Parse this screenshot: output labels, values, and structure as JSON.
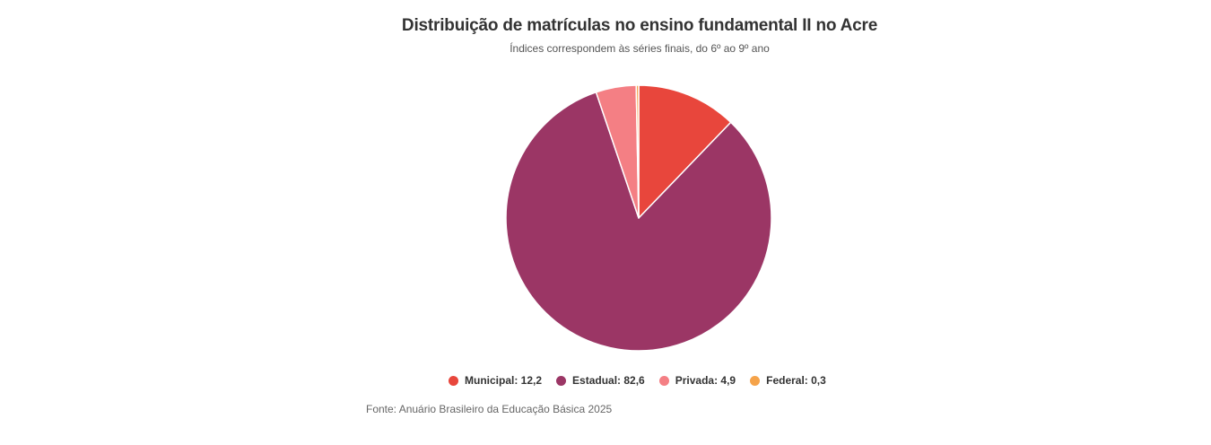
{
  "chart_data": {
    "type": "pie",
    "title": "Distribuição de matrículas no ensino fundamental II no Acre",
    "subtitle": "Índices correspondem às séries finais, do 6º ao 9º ano",
    "source": "Fonte: Anuário Brasileiro da Educação Básica 2025",
    "legend_position": "bottom",
    "slices": [
      {
        "label": "Municipal",
        "value": 12.2,
        "value_text": "12,2",
        "legend_text": "Municipal: 12,2",
        "color": "#e8463c"
      },
      {
        "label": "Estadual",
        "value": 82.6,
        "value_text": "82,6",
        "legend_text": "Estadual: 82,6",
        "color": "#9b3665"
      },
      {
        "label": "Privada",
        "value": 4.9,
        "value_text": "4,9",
        "legend_text": "Privada: 4,9",
        "color": "#f47f84"
      },
      {
        "label": "Federal",
        "value": 0.3,
        "value_text": "0,3",
        "legend_text": "Federal: 0,3",
        "color": "#f5a34a"
      }
    ]
  }
}
